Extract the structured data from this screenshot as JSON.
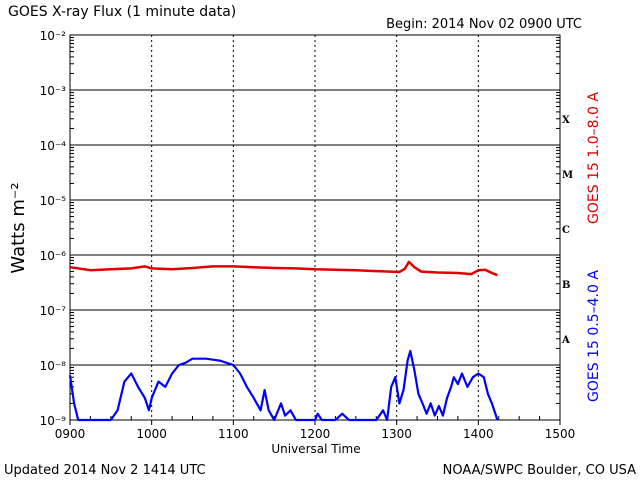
{
  "title": "GOES X-ray Flux (1 minute data)",
  "begin_label": "Begin: 2014 Nov 02 0900 UTC",
  "updated_label": "Updated 2014 Nov  2 1414 UTC",
  "source_label": "NOAA/SWPC Boulder, CO USA",
  "colors": {
    "long": "#e00000",
    "short": "#0000ff",
    "axis": "#000000"
  },
  "chart_data": {
    "type": "line",
    "yscale": "log",
    "xlabel": "Universal Time",
    "ylabel": "Watts m⁻²",
    "xlim": [
      "0900",
      "1500"
    ],
    "ylim": [
      1e-09,
      0.01
    ],
    "x_ticks": [
      "0900",
      "1000",
      "1100",
      "1200",
      "1300",
      "1400",
      "1500"
    ],
    "y_tick_labels": [
      "10⁻²",
      "10⁻³",
      "10⁻⁴",
      "10⁻⁵",
      "10⁻⁶",
      "10⁻⁷",
      "10⁻⁸",
      "10⁻⁹"
    ],
    "flare_classes": [
      {
        "label": "X",
        "y": 0.0003
      },
      {
        "label": "M",
        "y": 3e-05
      },
      {
        "label": "C",
        "y": 3e-06
      },
      {
        "label": "B",
        "y": 3e-07
      },
      {
        "label": "A",
        "y": 3e-08
      }
    ],
    "series": [
      {
        "name": "GOES 15 1.0–8.0 A",
        "color": "#e00000",
        "points": [
          [
            "0900",
            6e-07
          ],
          [
            "0915",
            5.3e-07
          ],
          [
            "0930",
            5.5e-07
          ],
          [
            "0945",
            5.7e-07
          ],
          [
            "0955",
            6.2e-07
          ],
          [
            "1000",
            5.7e-07
          ],
          [
            "1015",
            5.5e-07
          ],
          [
            "1030",
            5.8e-07
          ],
          [
            "1045",
            6.2e-07
          ],
          [
            "1100",
            6.2e-07
          ],
          [
            "1115",
            6e-07
          ],
          [
            "1130",
            5.8e-07
          ],
          [
            "1145",
            5.7e-07
          ],
          [
            "1200",
            5.5e-07
          ],
          [
            "1215",
            5.4e-07
          ],
          [
            "1230",
            5.3e-07
          ],
          [
            "1245",
            5.1e-07
          ],
          [
            "1255",
            5e-07
          ],
          [
            "1302",
            4.9e-07
          ],
          [
            "1306",
            5.6e-07
          ],
          [
            "1309",
            7.5e-07
          ],
          [
            "1313",
            6e-07
          ],
          [
            "1318",
            5e-07
          ],
          [
            "1330",
            4.8e-07
          ],
          [
            "1345",
            4.7e-07
          ],
          [
            "1355",
            4.5e-07
          ],
          [
            "1400",
            5.3e-07
          ],
          [
            "1405",
            5.4e-07
          ],
          [
            "1410",
            4.7e-07
          ],
          [
            "1414",
            4.3e-07
          ]
        ]
      },
      {
        "name": "GOES 15 0.5–4.0 A",
        "color": "#0000ff",
        "points": [
          [
            "0900",
            6.5e-09
          ],
          [
            "0903",
            2e-09
          ],
          [
            "0906",
            1e-09
          ],
          [
            "0930",
            1e-09
          ],
          [
            "0935",
            1.5e-09
          ],
          [
            "0940",
            5e-09
          ],
          [
            "0945",
            7e-09
          ],
          [
            "0950",
            4e-09
          ],
          [
            "0955",
            2.5e-09
          ],
          [
            "0958",
            1.5e-09
          ],
          [
            "1000",
            2.5e-09
          ],
          [
            "1005",
            5e-09
          ],
          [
            "1010",
            4e-09
          ],
          [
            "1015",
            7e-09
          ],
          [
            "1020",
            1e-08
          ],
          [
            "1025",
            1.1e-08
          ],
          [
            "1030",
            1.3e-08
          ],
          [
            "1040",
            1.3e-08
          ],
          [
            "1050",
            1.2e-08
          ],
          [
            "1100",
            1e-08
          ],
          [
            "1105",
            7e-09
          ],
          [
            "1110",
            4e-09
          ],
          [
            "1115",
            2.5e-09
          ],
          [
            "1120",
            1.5e-09
          ],
          [
            "1123",
            3.5e-09
          ],
          [
            "1126",
            1.5e-09
          ],
          [
            "1130",
            1e-09
          ],
          [
            "1135",
            2e-09
          ],
          [
            "1138",
            1.2e-09
          ],
          [
            "1142",
            1.5e-09
          ],
          [
            "1146",
            1e-09
          ],
          [
            "1200",
            1e-09
          ],
          [
            "1202",
            1.3e-09
          ],
          [
            "1205",
            1e-09
          ],
          [
            "1215",
            1e-09
          ],
          [
            "1220",
            1.3e-09
          ],
          [
            "1225",
            1e-09
          ],
          [
            "1245",
            1e-09
          ],
          [
            "1250",
            1.5e-09
          ],
          [
            "1253",
            1e-09
          ],
          [
            "1256",
            4e-09
          ],
          [
            "1259",
            6e-09
          ],
          [
            "1302",
            2e-09
          ],
          [
            "1305",
            3.5e-09
          ],
          [
            "1308",
            1.2e-08
          ],
          [
            "1310",
            1.8e-08
          ],
          [
            "1313",
            8e-09
          ],
          [
            "1316",
            3e-09
          ],
          [
            "1319",
            2e-09
          ],
          [
            "1322",
            1.3e-09
          ],
          [
            "1325",
            2e-09
          ],
          [
            "1328",
            1.2e-09
          ],
          [
            "1331",
            1.8e-09
          ],
          [
            "1334",
            1.2e-09
          ],
          [
            "1337",
            2.5e-09
          ],
          [
            "1340",
            4e-09
          ],
          [
            "1342",
            6e-09
          ],
          [
            "1345",
            4.5e-09
          ],
          [
            "1348",
            7e-09
          ],
          [
            "1352",
            4e-09
          ],
          [
            "1356",
            6e-09
          ],
          [
            "1400",
            7e-09
          ],
          [
            "1404",
            6e-09
          ],
          [
            "1407",
            3e-09
          ],
          [
            "1410",
            2e-09
          ],
          [
            "1413",
            1.2e-09
          ],
          [
            "1414",
            1e-09
          ]
        ]
      }
    ]
  }
}
